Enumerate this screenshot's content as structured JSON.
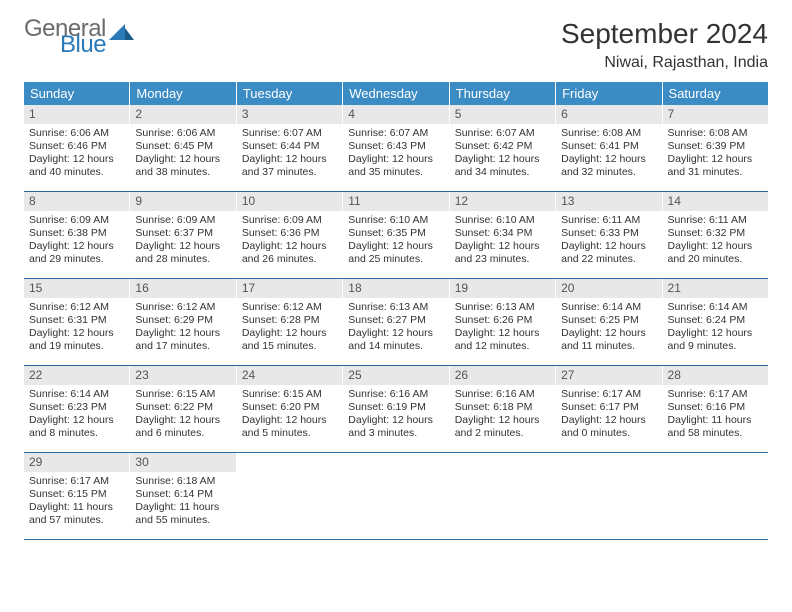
{
  "logo": {
    "text1": "General",
    "text2": "Blue"
  },
  "title": "September 2024",
  "location": "Niwai, Rajasthan, India",
  "weekday_bg": "#3b8bc4",
  "daynum_bg": "#e8e8e8",
  "border_color": "#2a6a9e",
  "weekdays": [
    "Sunday",
    "Monday",
    "Tuesday",
    "Wednesday",
    "Thursday",
    "Friday",
    "Saturday"
  ],
  "weeks": [
    [
      {
        "n": "1",
        "sr": "Sunrise: 6:06 AM",
        "ss": "Sunset: 6:46 PM",
        "dl": "Daylight: 12 hours and 40 minutes."
      },
      {
        "n": "2",
        "sr": "Sunrise: 6:06 AM",
        "ss": "Sunset: 6:45 PM",
        "dl": "Daylight: 12 hours and 38 minutes."
      },
      {
        "n": "3",
        "sr": "Sunrise: 6:07 AM",
        "ss": "Sunset: 6:44 PM",
        "dl": "Daylight: 12 hours and 37 minutes."
      },
      {
        "n": "4",
        "sr": "Sunrise: 6:07 AM",
        "ss": "Sunset: 6:43 PM",
        "dl": "Daylight: 12 hours and 35 minutes."
      },
      {
        "n": "5",
        "sr": "Sunrise: 6:07 AM",
        "ss": "Sunset: 6:42 PM",
        "dl": "Daylight: 12 hours and 34 minutes."
      },
      {
        "n": "6",
        "sr": "Sunrise: 6:08 AM",
        "ss": "Sunset: 6:41 PM",
        "dl": "Daylight: 12 hours and 32 minutes."
      },
      {
        "n": "7",
        "sr": "Sunrise: 6:08 AM",
        "ss": "Sunset: 6:39 PM",
        "dl": "Daylight: 12 hours and 31 minutes."
      }
    ],
    [
      {
        "n": "8",
        "sr": "Sunrise: 6:09 AM",
        "ss": "Sunset: 6:38 PM",
        "dl": "Daylight: 12 hours and 29 minutes."
      },
      {
        "n": "9",
        "sr": "Sunrise: 6:09 AM",
        "ss": "Sunset: 6:37 PM",
        "dl": "Daylight: 12 hours and 28 minutes."
      },
      {
        "n": "10",
        "sr": "Sunrise: 6:09 AM",
        "ss": "Sunset: 6:36 PM",
        "dl": "Daylight: 12 hours and 26 minutes."
      },
      {
        "n": "11",
        "sr": "Sunrise: 6:10 AM",
        "ss": "Sunset: 6:35 PM",
        "dl": "Daylight: 12 hours and 25 minutes."
      },
      {
        "n": "12",
        "sr": "Sunrise: 6:10 AM",
        "ss": "Sunset: 6:34 PM",
        "dl": "Daylight: 12 hours and 23 minutes."
      },
      {
        "n": "13",
        "sr": "Sunrise: 6:11 AM",
        "ss": "Sunset: 6:33 PM",
        "dl": "Daylight: 12 hours and 22 minutes."
      },
      {
        "n": "14",
        "sr": "Sunrise: 6:11 AM",
        "ss": "Sunset: 6:32 PM",
        "dl": "Daylight: 12 hours and 20 minutes."
      }
    ],
    [
      {
        "n": "15",
        "sr": "Sunrise: 6:12 AM",
        "ss": "Sunset: 6:31 PM",
        "dl": "Daylight: 12 hours and 19 minutes."
      },
      {
        "n": "16",
        "sr": "Sunrise: 6:12 AM",
        "ss": "Sunset: 6:29 PM",
        "dl": "Daylight: 12 hours and 17 minutes."
      },
      {
        "n": "17",
        "sr": "Sunrise: 6:12 AM",
        "ss": "Sunset: 6:28 PM",
        "dl": "Daylight: 12 hours and 15 minutes."
      },
      {
        "n": "18",
        "sr": "Sunrise: 6:13 AM",
        "ss": "Sunset: 6:27 PM",
        "dl": "Daylight: 12 hours and 14 minutes."
      },
      {
        "n": "19",
        "sr": "Sunrise: 6:13 AM",
        "ss": "Sunset: 6:26 PM",
        "dl": "Daylight: 12 hours and 12 minutes."
      },
      {
        "n": "20",
        "sr": "Sunrise: 6:14 AM",
        "ss": "Sunset: 6:25 PM",
        "dl": "Daylight: 12 hours and 11 minutes."
      },
      {
        "n": "21",
        "sr": "Sunrise: 6:14 AM",
        "ss": "Sunset: 6:24 PM",
        "dl": "Daylight: 12 hours and 9 minutes."
      }
    ],
    [
      {
        "n": "22",
        "sr": "Sunrise: 6:14 AM",
        "ss": "Sunset: 6:23 PM",
        "dl": "Daylight: 12 hours and 8 minutes."
      },
      {
        "n": "23",
        "sr": "Sunrise: 6:15 AM",
        "ss": "Sunset: 6:22 PM",
        "dl": "Daylight: 12 hours and 6 minutes."
      },
      {
        "n": "24",
        "sr": "Sunrise: 6:15 AM",
        "ss": "Sunset: 6:20 PM",
        "dl": "Daylight: 12 hours and 5 minutes."
      },
      {
        "n": "25",
        "sr": "Sunrise: 6:16 AM",
        "ss": "Sunset: 6:19 PM",
        "dl": "Daylight: 12 hours and 3 minutes."
      },
      {
        "n": "26",
        "sr": "Sunrise: 6:16 AM",
        "ss": "Sunset: 6:18 PM",
        "dl": "Daylight: 12 hours and 2 minutes."
      },
      {
        "n": "27",
        "sr": "Sunrise: 6:17 AM",
        "ss": "Sunset: 6:17 PM",
        "dl": "Daylight: 12 hours and 0 minutes."
      },
      {
        "n": "28",
        "sr": "Sunrise: 6:17 AM",
        "ss": "Sunset: 6:16 PM",
        "dl": "Daylight: 11 hours and 58 minutes."
      }
    ],
    [
      {
        "n": "29",
        "sr": "Sunrise: 6:17 AM",
        "ss": "Sunset: 6:15 PM",
        "dl": "Daylight: 11 hours and 57 minutes."
      },
      {
        "n": "30",
        "sr": "Sunrise: 6:18 AM",
        "ss": "Sunset: 6:14 PM",
        "dl": "Daylight: 11 hours and 55 minutes."
      },
      {
        "empty": true
      },
      {
        "empty": true
      },
      {
        "empty": true
      },
      {
        "empty": true
      },
      {
        "empty": true
      }
    ]
  ]
}
